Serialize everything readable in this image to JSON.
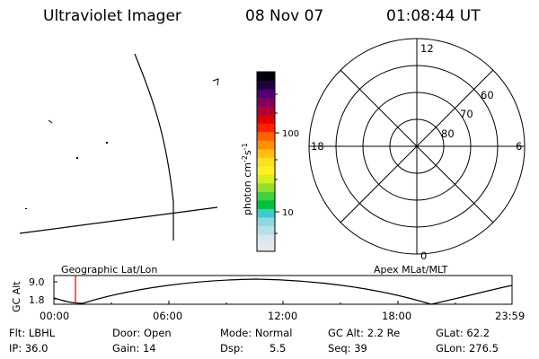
{
  "header": {
    "title": "Ultraviolet Imager",
    "date": "08 Nov 07",
    "time": "01:08:44 UT"
  },
  "colorbar": {
    "label_base": "photon cm",
    "label_exp1": "-2",
    "label_mid": "s",
    "label_exp2": "-1",
    "ticks": [
      "100",
      "10"
    ],
    "colors": [
      "#e8e8e8",
      "#d8e8ec",
      "#b8e0e4",
      "#8cd8dc",
      "#40c8d0",
      "#00c040",
      "#40d040",
      "#90e030",
      "#d0f020",
      "#fff020",
      "#ffe020",
      "#ffc010",
      "#ff9000",
      "#ff6000",
      "#ff2000",
      "#e00000",
      "#b00030",
      "#800060",
      "#500070",
      "#200040",
      "#000010"
    ]
  },
  "polar_plot": {
    "mlt_labels": [
      "12",
      "18",
      "6",
      "0"
    ],
    "mlat_labels": [
      "60",
      "70",
      "80"
    ]
  },
  "timeline": {
    "y_axis_label": "GC Alt",
    "y_ticks": [
      "9.0",
      "1.8"
    ],
    "left_label": "Geographic Lat/Lon",
    "right_label": "Apex MLat/MLT",
    "x_ticks": [
      "00:00",
      "06:00",
      "12:00",
      "18:00",
      "23:59"
    ],
    "marker_color": "#ff0000"
  },
  "info": {
    "flt": "Flt: LBHL",
    "ip": "IP: 36.0",
    "door": "Door: Open",
    "gain": "Gain: 14",
    "mode": "Mode: Normal",
    "dsp_label": "Dsp:",
    "dsp_value": "5.5",
    "gc_alt": "GC Alt: 2.2 Re",
    "seq": "Seq: 39",
    "glat": "GLat:  62.2",
    "glon": "GLon: 276.5"
  }
}
